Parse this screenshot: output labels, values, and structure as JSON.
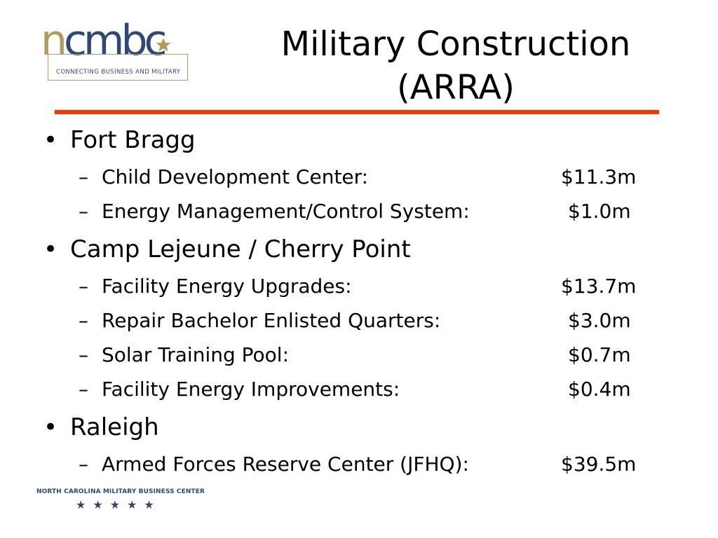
{
  "logo": {
    "wordmark_prefix": "n",
    "wordmark_rest": "cmbc",
    "tagline": "CONNECTING BUSINESS AND MILITARY",
    "primary_color": "#2c4a75",
    "accent_color": "#b39b5f"
  },
  "title_line1": "Military Construction",
  "title_line2": "(ARRA)",
  "rule_color": "#ff3300",
  "sections": [
    {
      "heading": "Fort Bragg",
      "items": [
        {
          "label": "Child Development Center:",
          "amount": "$11.3m"
        },
        {
          "label": "Energy Management/Control System:",
          "amount": "$1.0m"
        }
      ]
    },
    {
      "heading": "Camp Lejeune / Cherry Point",
      "items": [
        {
          "label": "Facility Energy Upgrades:",
          "amount": "$13.7m"
        },
        {
          "label": "Repair Bachelor Enlisted Quarters:",
          "amount": "$3.0m"
        },
        {
          "label": "Solar Training Pool:",
          "amount": "$0.7m"
        },
        {
          "label": "Facility Energy Improvements:",
          "amount": "$0.4m"
        }
      ]
    },
    {
      "heading": "Raleigh",
      "items": [
        {
          "label": "Armed Forces Reserve Center (JFHQ):",
          "amount": "$39.5m"
        }
      ]
    }
  ],
  "bullet_glyph": "•",
  "dash_glyph": "–",
  "footer": {
    "org_name": "NORTH CAROLINA MILITARY BUSINESS CENTER",
    "stars": [
      "★",
      "★",
      "★",
      "★",
      "★"
    ]
  }
}
